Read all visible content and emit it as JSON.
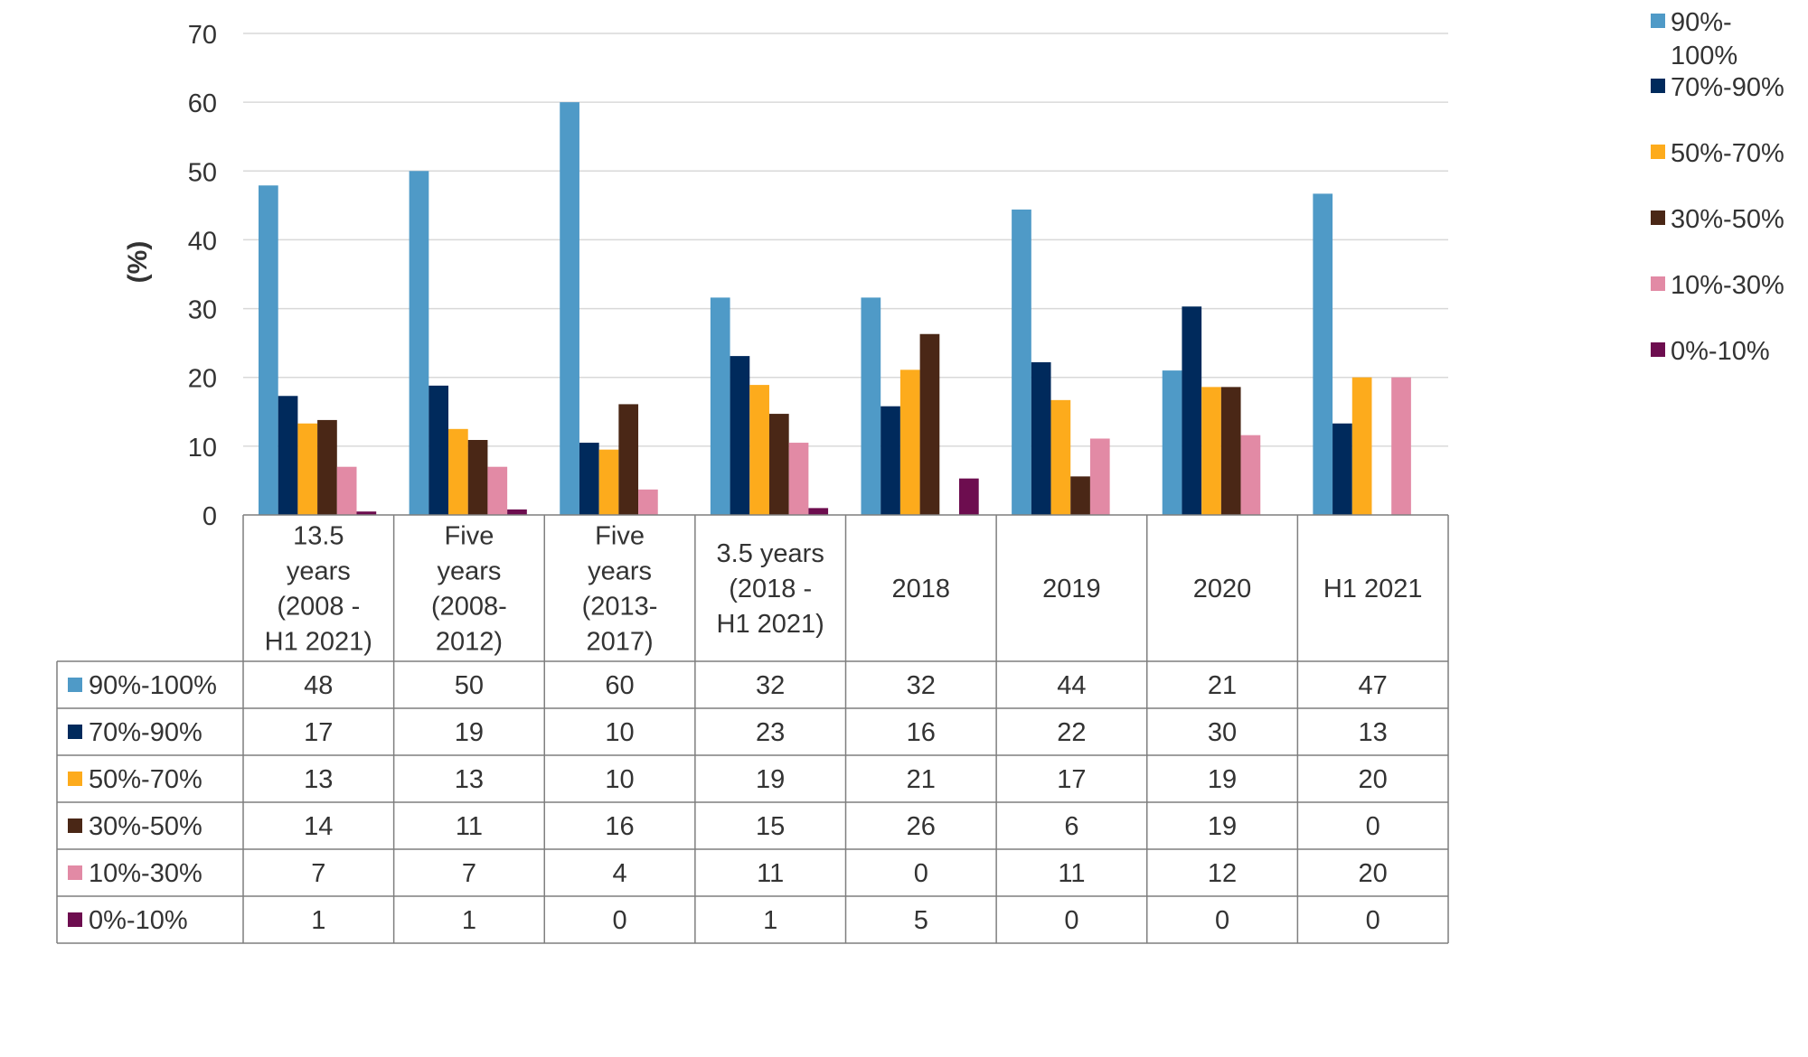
{
  "chart_data": {
    "type": "bar",
    "ylabel": "(%)",
    "ylim": [
      0,
      70
    ],
    "yticks": [
      0,
      10,
      20,
      30,
      40,
      50,
      60,
      70
    ],
    "grid": true,
    "legend": "right",
    "categories": [
      [
        "13.5",
        "years",
        "(2008 -",
        "H1 2021)"
      ],
      [
        "Five",
        "years",
        "(2008-",
        "2012)"
      ],
      [
        "Five",
        "years",
        "(2013-",
        "2017)"
      ],
      [
        "3.5 years",
        "(2018 -",
        "H1 2021)"
      ],
      [
        "2018"
      ],
      [
        "2019"
      ],
      [
        "2020"
      ],
      [
        "H1 2021"
      ]
    ],
    "series": [
      {
        "name": "90%-100%",
        "legend_lines": [
          "90%-",
          "100%"
        ],
        "color": "#4f9ac7",
        "values": [
          47.9,
          50.0,
          60.0,
          31.6,
          31.6,
          44.4,
          21.0,
          46.7
        ],
        "table": [
          "48",
          "50",
          "60",
          "32",
          "32",
          "44",
          "21",
          "47"
        ]
      },
      {
        "name": "70%-90%",
        "legend_lines": [
          "70%-90%"
        ],
        "color": "#002a5c",
        "values": [
          17.3,
          18.8,
          10.5,
          23.1,
          15.8,
          22.2,
          30.3,
          13.3
        ],
        "table": [
          "17",
          "19",
          "10",
          "23",
          "16",
          "22",
          "30",
          "13"
        ]
      },
      {
        "name": "50%-70%",
        "legend_lines": [
          "50%-70%"
        ],
        "color": "#fdab1c",
        "values": [
          13.3,
          12.5,
          9.5,
          18.9,
          21.1,
          16.7,
          18.6,
          20.0
        ],
        "table": [
          "13",
          "13",
          "10",
          "19",
          "21",
          "17",
          "19",
          "20"
        ]
      },
      {
        "name": "30%-50%",
        "legend_lines": [
          "30%-50%"
        ],
        "color": "#4a2716",
        "values": [
          13.8,
          10.9,
          16.1,
          14.7,
          26.3,
          5.6,
          18.6,
          0
        ],
        "table": [
          "14",
          "11",
          "16",
          "15",
          "26",
          "6",
          "19",
          "0"
        ]
      },
      {
        "name": "10%-30%",
        "legend_lines": [
          "10%-30%"
        ],
        "color": "#e28aa5",
        "values": [
          7.0,
          7.0,
          3.7,
          10.5,
          0,
          11.1,
          11.6,
          20.0
        ],
        "table": [
          "7",
          "7",
          "4",
          "11",
          "0",
          "11",
          "12",
          "20"
        ]
      },
      {
        "name": "0%-10%",
        "legend_lines": [
          "0%-10%"
        ],
        "color": "#6d0d4f",
        "values": [
          0.5,
          0.8,
          0,
          1.0,
          5.3,
          0,
          0,
          0
        ],
        "table": [
          "1",
          "1",
          "0",
          "1",
          "5",
          "0",
          "0",
          "0"
        ]
      }
    ]
  }
}
